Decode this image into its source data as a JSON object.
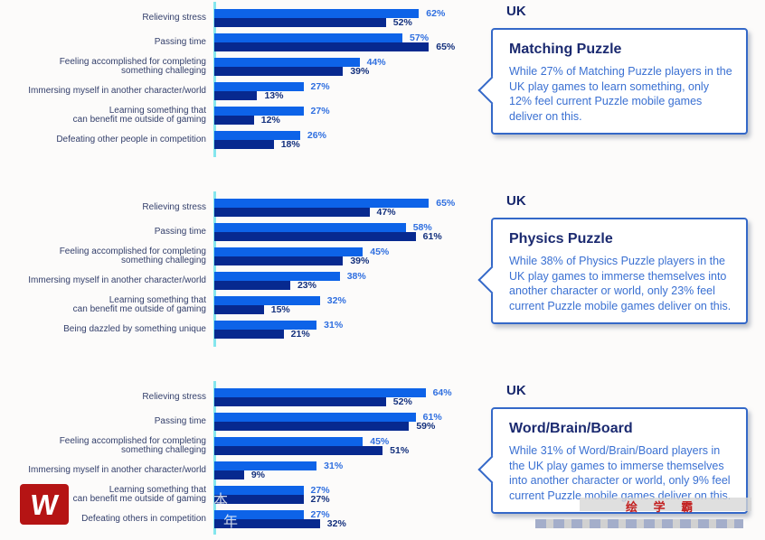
{
  "page": {
    "background": "#fcfbfa"
  },
  "colors": {
    "bar_light": "#0d63e8",
    "bar_dark": "#07298f",
    "pct_label_light": "#2f6fe0",
    "pct_label_dark": "#13307d",
    "category_label": "#333f6b",
    "heading": "#16266b",
    "callout_border": "#3468c8",
    "callout_body_text": "#3a70d2",
    "axis_line": "#84e6ed",
    "watermark_red": "#c32020",
    "watermark_logo_bg": "#b51414"
  },
  "chart_data": [
    {
      "type": "bar",
      "orientation": "horizontal",
      "region_label": "UK",
      "unit": "%",
      "xlim": [
        0,
        70
      ],
      "grid": false,
      "legend": "none",
      "categories": [
        "Relieving stress",
        "Passing time",
        "Feeling accomplished for completing\nsomething challeging",
        "Immersing myself in another character/world",
        "Learning something that\ncan benefit me outside of gaming",
        "Defeating other people in competition"
      ],
      "series": [
        {
          "name": "light-blue",
          "color": "#0d63e8",
          "values": [
            62,
            57,
            44,
            27,
            27,
            26
          ]
        },
        {
          "name": "dark-blue",
          "color": "#07298f",
          "values": [
            52,
            65,
            39,
            13,
            12,
            18
          ]
        }
      ],
      "callout": {
        "title": "Matching Puzzle",
        "body": "While 27% of Matching Puzzle players in the UK play games to learn something, only 12% feel current Puzzle mobile games deliver on this."
      }
    },
    {
      "type": "bar",
      "orientation": "horizontal",
      "region_label": "UK",
      "unit": "%",
      "xlim": [
        0,
        70
      ],
      "grid": false,
      "legend": "none",
      "categories": [
        "Relieving stress",
        "Passing time",
        "Feeling accomplished for completing\nsomething challeging",
        "Immersing myself in another character/world",
        "Learning something that\ncan benefit me outside of gaming",
        "Being dazzled by something unique"
      ],
      "series": [
        {
          "name": "light-blue",
          "color": "#0d63e8",
          "values": [
            65,
            58,
            45,
            38,
            32,
            31
          ]
        },
        {
          "name": "dark-blue",
          "color": "#07298f",
          "values": [
            47,
            61,
            39,
            23,
            15,
            21
          ]
        }
      ],
      "callout": {
        "title": "Physics Puzzle",
        "body": "While 38% of Physics Puzzle players in the UK play games to immerse themselves into another character or world, only 23% feel current Puzzle mobile games deliver on this."
      }
    },
    {
      "type": "bar",
      "orientation": "horizontal",
      "region_label": "UK",
      "unit": "%",
      "xlim": [
        0,
        70
      ],
      "grid": false,
      "legend": "none",
      "categories": [
        "Relieving stress",
        "Passing time",
        "Feeling accomplished for completing\nsomething challeging",
        "Immersing myself in another character/world",
        "Learning something that\ncan benefit me outside of gaming",
        "Defeating others in competition"
      ],
      "series": [
        {
          "name": "light-blue",
          "color": "#0d63e8",
          "values": [
            64,
            61,
            45,
            31,
            27,
            27
          ]
        },
        {
          "name": "dark-blue",
          "color": "#07298f",
          "values": [
            52,
            59,
            51,
            9,
            27,
            32
          ]
        }
      ],
      "callout": {
        "title": "Word/Brain/Board",
        "body": "While 31% of Word/Brain/Board players in the UK play games to immerse themselves into another character or world, only 9% feel current Puzzle mobile games deliver on this."
      }
    }
  ],
  "watermarks": {
    "logo_letter": "W",
    "glyph_1": "本",
    "glyph_2": "年",
    "red_text": "绘 学 霸"
  }
}
